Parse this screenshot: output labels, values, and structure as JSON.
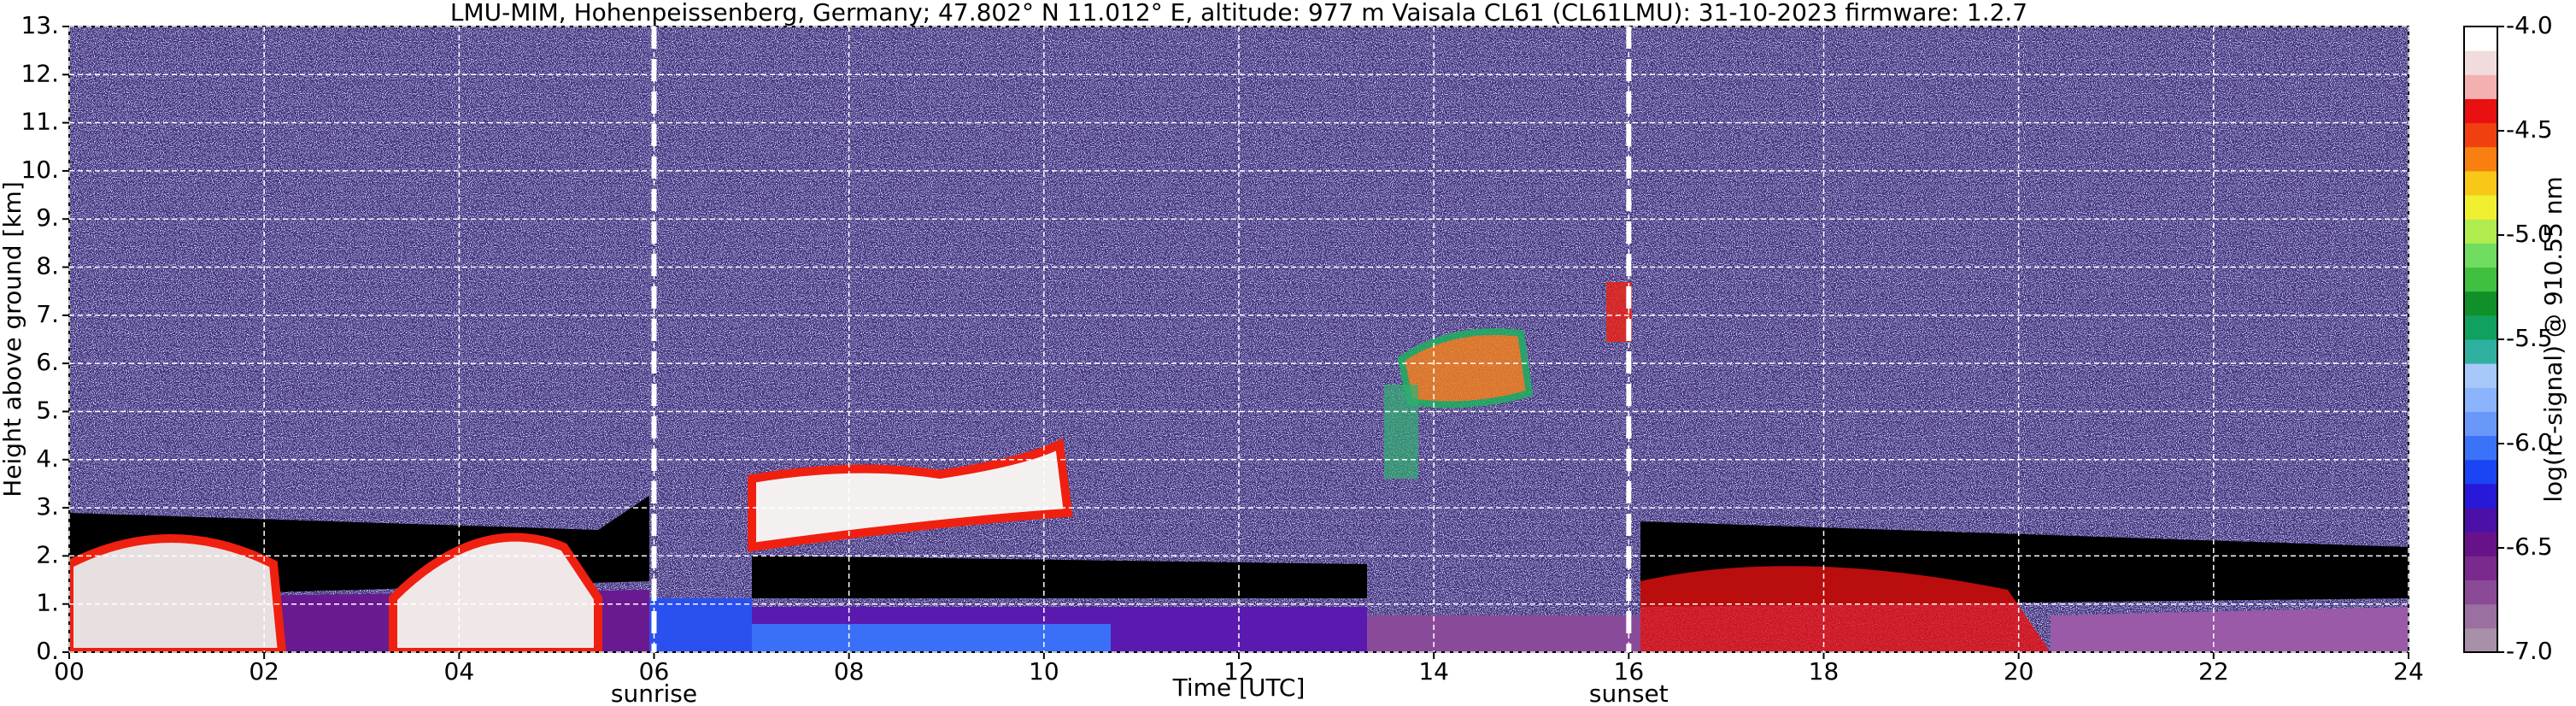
{
  "chart_data": {
    "type": "heatmap",
    "title": "LMU-MIM, Hohenpeissenberg, Germany; 47.802° N 11.012° E, altitude: 977 m    Vaisala CL61 (CL61LMU): 31-10-2023    firmware: 1.2.7",
    "x_label": "Time [UTC]",
    "y_label": "Height above ground [km]",
    "xlim": [
      0,
      24
    ],
    "xticks": [
      {
        "value": 0,
        "label": "00"
      },
      {
        "value": 2,
        "label": "02"
      },
      {
        "value": 4,
        "label": "04"
      },
      {
        "value": 6,
        "label": "06"
      },
      {
        "value": 8,
        "label": "08"
      },
      {
        "value": 10,
        "label": "10"
      },
      12,
      14,
      16,
      18,
      20,
      22,
      24
    ],
    "ylim": [
      0,
      13
    ],
    "yticks": [
      {
        "value": 0,
        "label": "0."
      },
      {
        "value": 1,
        "label": "1."
      },
      {
        "value": 2,
        "label": "2."
      },
      {
        "value": 3,
        "label": "3."
      },
      {
        "value": 4,
        "label": "4."
      },
      {
        "value": 5,
        "label": "5."
      },
      {
        "value": 6,
        "label": "6."
      },
      {
        "value": 7,
        "label": "7."
      },
      {
        "value": 8,
        "label": "8."
      },
      {
        "value": 9,
        "label": "9."
      },
      {
        "value": 10,
        "label": "10."
      },
      {
        "value": 11,
        "label": "11."
      },
      {
        "value": 12,
        "label": "12."
      },
      {
        "value": 13,
        "label": "13."
      }
    ],
    "grid": true,
    "annotations": [
      {
        "text": "sunrise",
        "x": 6
      },
      {
        "text": "sunset",
        "x": 16
      }
    ],
    "colorbar": {
      "label": "log(rc-signal) @ 910.55 nm",
      "lim": [
        -7,
        -4
      ],
      "ticks": [
        {
          "value": -7,
          "label": "-7.0"
        },
        {
          "value": -6.5,
          "label": "-6.5"
        },
        {
          "value": -6,
          "label": "-6.0"
        },
        {
          "value": -5.5,
          "label": "-5.5"
        },
        {
          "value": -5,
          "label": "-5.0"
        },
        {
          "value": -4.5,
          "label": "-4.5"
        },
        {
          "value": -4,
          "label": "-4.0"
        }
      ],
      "colors": [
        "#a890a8",
        "#9a70a0",
        "#8a4a96",
        "#7a2a8c",
        "#68128a",
        "#4a10a8",
        "#2818d8",
        "#1a44f4",
        "#3a72f8",
        "#6a98fa",
        "#8cb4fc",
        "#a8c8fa",
        "#30b0a0",
        "#10a060",
        "#109028",
        "#40c040",
        "#70dc60",
        "#b0ec50",
        "#f0f030",
        "#f8c818",
        "#f88010",
        "#f04010",
        "#e81010",
        "#f4b0b0",
        "#f0dcdc",
        "#ffffff"
      ]
    }
  }
}
